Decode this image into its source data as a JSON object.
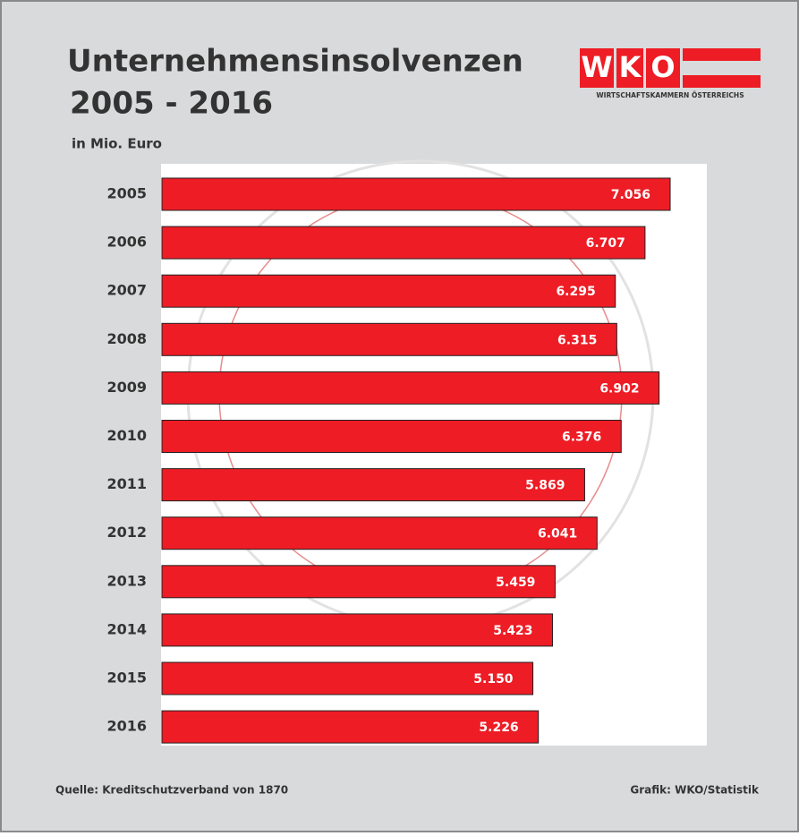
{
  "chart_data": {
    "type": "hbar",
    "title": "Unternehmensinsolvenzen",
    "subtitle": "2005 - 2016",
    "unit_label": "in Mio. Euro",
    "categories": [
      "2005",
      "2006",
      "2007",
      "2008",
      "2009",
      "2010",
      "2011",
      "2012",
      "2013",
      "2014",
      "2015",
      "2016"
    ],
    "values": [
      7056,
      6707,
      6295,
      6315,
      6902,
      6376,
      5869,
      6041,
      5459,
      5423,
      5150,
      5226
    ],
    "value_labels": [
      "7.056",
      "6.707",
      "6.295",
      "6.315",
      "6.902",
      "6.376",
      "5.869",
      "6.041",
      "5.459",
      "5.423",
      "5.150",
      "5.226"
    ],
    "color": "#ee1c25",
    "source": "Quelle: Kreditschutzverband von 1870",
    "credit": "Grafik: WKO/Statistik",
    "logo": {
      "letters": [
        "W",
        "K",
        "O"
      ],
      "text": "WIRTSCHAFTSKAMMERN ÖSTERREICHS"
    }
  }
}
